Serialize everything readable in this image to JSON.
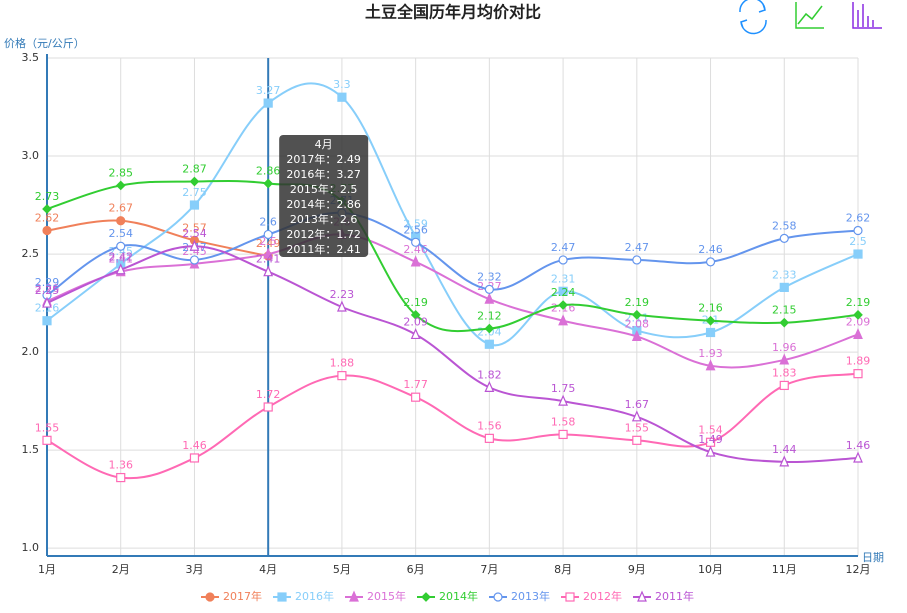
{
  "chart_data": {
    "type": "line",
    "title": "土豆全国历年月均价对比",
    "y_label": "价格（元/公斤）",
    "x_label": "日期",
    "categories": [
      "1月",
      "2月",
      "3月",
      "4月",
      "5月",
      "6月",
      "7月",
      "8月",
      "9月",
      "10月",
      "11月",
      "12月"
    ],
    "ylim": [
      0.96,
      3.5
    ],
    "yticks": [
      {
        "value": 1,
        "label": "1.0"
      },
      1.5,
      {
        "value": 2,
        "label": "2.0"
      },
      2.5,
      {
        "value": 3,
        "label": "3.0"
      },
      3.5
    ],
    "grid": true,
    "smooth": true,
    "legend": "bottom",
    "series": [
      {
        "name": "2017年",
        "color": "#f0805a",
        "marker": "circle",
        "values": [
          2.62,
          2.67,
          2.57,
          2.49,
          null,
          null,
          null,
          null,
          null,
          null,
          null,
          null
        ]
      },
      {
        "name": "2016年",
        "color": "#87cefa",
        "marker": "square",
        "values": [
          2.16,
          2.45,
          2.75,
          3.27,
          3.3,
          2.59,
          2.04,
          2.31,
          2.11,
          2.1,
          2.33,
          2.5
        ]
      },
      {
        "name": "2015年",
        "color": "#da70d6",
        "marker": "triangle",
        "values": [
          2.26,
          2.41,
          2.45,
          2.5,
          2.6,
          2.46,
          2.27,
          2.16,
          2.08,
          1.93,
          1.96,
          2.09
        ]
      },
      {
        "name": "2014年",
        "color": "#32cd32",
        "marker": "diamond",
        "values": [
          2.73,
          2.85,
          2.87,
          2.86,
          2.77,
          2.19,
          2.12,
          2.24,
          2.19,
          2.16,
          2.15,
          2.19
        ]
      },
      {
        "name": "2013年",
        "color": "#6495ed",
        "marker": "empty-circle",
        "values": [
          2.29,
          2.54,
          2.47,
          2.6,
          2.71,
          2.56,
          2.32,
          2.47,
          2.47,
          2.46,
          2.58,
          2.62
        ]
      },
      {
        "name": "2012年",
        "color": "#ff69b4",
        "marker": "empty-square",
        "values": [
          1.55,
          1.36,
          1.46,
          1.72,
          1.88,
          1.77,
          1.56,
          1.58,
          1.55,
          1.54,
          1.83,
          1.89
        ]
      },
      {
        "name": "2011年",
        "color": "#ba55d3",
        "marker": "empty-triangle",
        "values": [
          2.25,
          2.42,
          2.54,
          2.41,
          2.23,
          2.09,
          1.82,
          1.75,
          1.67,
          1.49,
          1.44,
          1.46
        ]
      }
    ],
    "tooltip": {
      "category_index": 3,
      "title": "4月",
      "rows": [
        "2017年：2.49",
        "2016年：3.27",
        "2015年：2.5",
        "2014年：2.86",
        "2013年：2.6",
        "2012年：1.72",
        "2011年：2.41"
      ]
    }
  }
}
